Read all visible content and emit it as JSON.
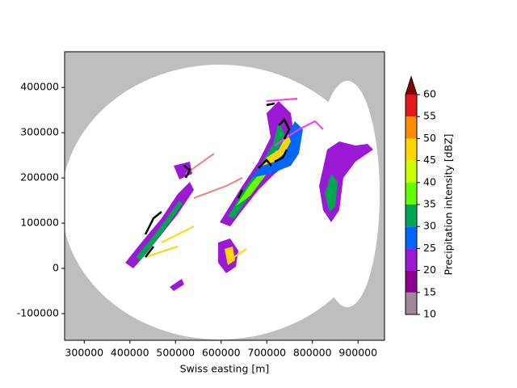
{
  "chart_data": {
    "type": "image",
    "x_label": "Swiss easting [m]",
    "xlim": [
      257000,
      958000
    ],
    "xticks": [
      300000,
      400000,
      500000,
      600000,
      700000,
      800000,
      900000
    ],
    "ylim": [
      -159000,
      479000
    ],
    "yticks": [
      -100000,
      0,
      100000,
      200000,
      300000,
      400000
    ],
    "colorbar": {
      "label": "Precipitation intensity [dBZ]",
      "ticks": [
        10,
        15,
        20,
        25,
        30,
        35,
        40,
        45,
        50,
        55,
        60
      ],
      "colors": [
        "#a0879a",
        "#8c008c",
        "#9b19d5",
        "#0066ff",
        "#00a651",
        "#66ff00",
        "#ccff00",
        "#ffd700",
        "#ff8c00",
        "#e31a1c"
      ],
      "over_color": "#8b0000"
    }
  }
}
